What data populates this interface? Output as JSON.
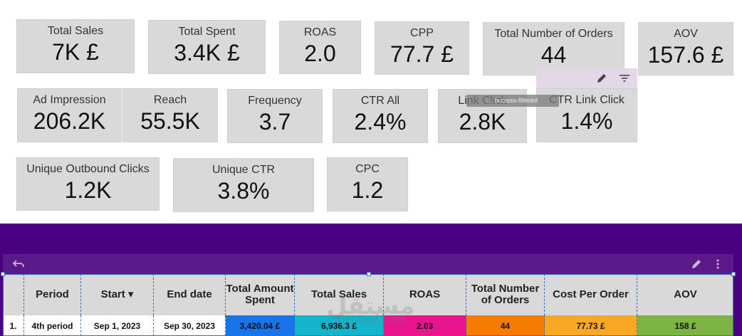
{
  "scorecards": [
    {
      "label": "Total Sales",
      "value": "7K £"
    },
    {
      "label": "Total Spent",
      "value": "3.4K £"
    },
    {
      "label": "ROAS",
      "value": "2.0"
    },
    {
      "label": "CPP",
      "value": "77.7 £"
    },
    {
      "label": "Total Number of Orders",
      "value": "44"
    },
    {
      "label": "AOV",
      "value": "157.6 £"
    },
    {
      "label": "Ad Impression",
      "value": "206.2K"
    },
    {
      "label": "Reach",
      "value": "55.5K"
    },
    {
      "label": "Frequency",
      "value": "3.7"
    },
    {
      "label": "CTR All",
      "value": "2.4%"
    },
    {
      "label": "Link Click",
      "value": "2.8K"
    },
    {
      "label": "CTR Link Click",
      "value": "1.4%"
    },
    {
      "label": "Unique Outbound Clicks",
      "value": "1.2K"
    },
    {
      "label": "Unique CTR",
      "value": "3.8%"
    },
    {
      "label": "CPC",
      "value": "1.2"
    }
  ],
  "tooltip": "… is cross-filtered",
  "table": {
    "headers": [
      "",
      "Period",
      "Start ▾",
      "End date",
      "Total Amount Spent",
      "Total Sales",
      "ROAS",
      "Total Number of Orders",
      "Cost Per Order",
      "AOV"
    ],
    "rows": [
      {
        "cells": [
          "1.",
          "4th period",
          "Sep 1, 2023",
          "Sep 30, 2023",
          "3,420.04 £",
          "6,936.3 £",
          "2.03",
          "44",
          "77.73 £",
          "158 £"
        ]
      }
    ],
    "cell_colors": [
      "#ffffff",
      "#ffffff",
      "#ffffff",
      "#ffffff",
      "#1a73e8",
      "#12b5cb",
      "#e8158f",
      "#f57c00",
      "#f9a825",
      "#7cb342"
    ]
  },
  "icons": [
    "edit-icon",
    "filter-icon",
    "undo-icon",
    "more-vert-icon"
  ],
  "watermark": "مستقل",
  "watermark_sub": "mostaql.com"
}
